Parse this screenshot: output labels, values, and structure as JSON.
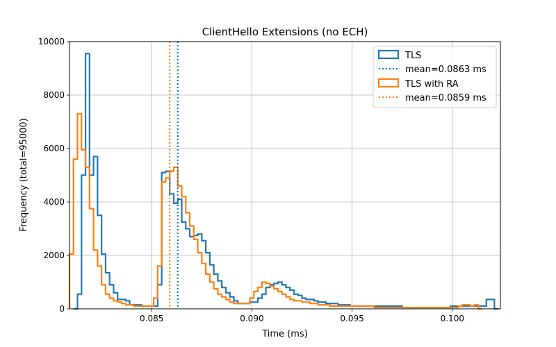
{
  "chart_data": {
    "type": "histogram",
    "title": "ClientHello Extensions (no ECH)",
    "xlabel": "Time (ms)",
    "ylabel": "Frequency (total=95000)",
    "xlim": [
      0.0809,
      0.1024
    ],
    "ylim": [
      0,
      10000
    ],
    "xticks": [
      0.085,
      0.09,
      0.095,
      0.1
    ],
    "xtick_labels": [
      "0.085",
      "0.090",
      "0.095",
      "0.100"
    ],
    "yticks": [
      0,
      2000,
      4000,
      6000,
      8000,
      10000
    ],
    "ytick_labels": [
      "0",
      "2000",
      "4000",
      "6000",
      "8000",
      "10000"
    ],
    "grid": true,
    "legend_position": "top-right",
    "bin_width": 0.0002,
    "series": [
      {
        "name": "TLS",
        "color": "#1f77b4",
        "bin_edges_range": [
          0.0811,
          0.1021
        ],
        "counts": [
          0,
          550,
          5000,
          9550,
          5000,
          5700,
          3500,
          2050,
          1350,
          900,
          600,
          350,
          350,
          300,
          150,
          150,
          150,
          100,
          100,
          100,
          100,
          900,
          5100,
          5150,
          4300,
          3950,
          4100,
          3250,
          3000,
          2700,
          2750,
          2800,
          2550,
          2100,
          1650,
          1300,
          1050,
          800,
          600,
          450,
          300,
          200,
          200,
          200,
          250,
          250,
          400,
          550,
          800,
          900,
          950,
          1000,
          900,
          800,
          700,
          550,
          500,
          400,
          350,
          350,
          300,
          250,
          250,
          200,
          200,
          200,
          150,
          150,
          150,
          100,
          100,
          100,
          100,
          100,
          100,
          100,
          100,
          100,
          100,
          100,
          100,
          100,
          50,
          50,
          50,
          50,
          50,
          50,
          50,
          50,
          50,
          50,
          50,
          50,
          100,
          100,
          100,
          100,
          100,
          100,
          100,
          100,
          100,
          350,
          350,
          0
        ]
      },
      {
        "name": "TLS with RA",
        "color": "#ff7f0e",
        "bin_edges_range": [
          0.0809,
          0.1021
        ],
        "counts": [
          2050,
          5600,
          7300,
          5950,
          5300,
          3750,
          2200,
          1600,
          900,
          550,
          400,
          300,
          250,
          200,
          150,
          150,
          100,
          100,
          100,
          100,
          100,
          400,
          1600,
          4750,
          4900,
          5150,
          5300,
          4600,
          4200,
          3600,
          3100,
          2600,
          2100,
          1700,
          1300,
          1000,
          750,
          550,
          450,
          350,
          250,
          200,
          200,
          200,
          200,
          400,
          650,
          800,
          1000,
          950,
          850,
          750,
          650,
          550,
          450,
          350,
          300,
          300,
          250,
          250,
          200,
          200,
          150,
          150,
          150,
          100,
          100,
          100,
          100,
          100,
          100,
          100,
          100,
          100,
          100,
          100,
          50,
          50,
          50,
          50,
          50,
          50,
          50,
          50,
          50,
          50,
          50,
          50,
          50,
          50,
          50,
          50,
          50,
          50,
          50,
          50,
          50,
          100,
          150,
          150,
          100,
          150,
          0
        ]
      }
    ],
    "mean_lines": [
      {
        "name": "mean=0.0863 ms",
        "value": 0.0863,
        "color": "#1f77b4"
      },
      {
        "name": "mean=0.0859 ms",
        "value": 0.0859,
        "color": "#ff7f0e"
      }
    ]
  }
}
